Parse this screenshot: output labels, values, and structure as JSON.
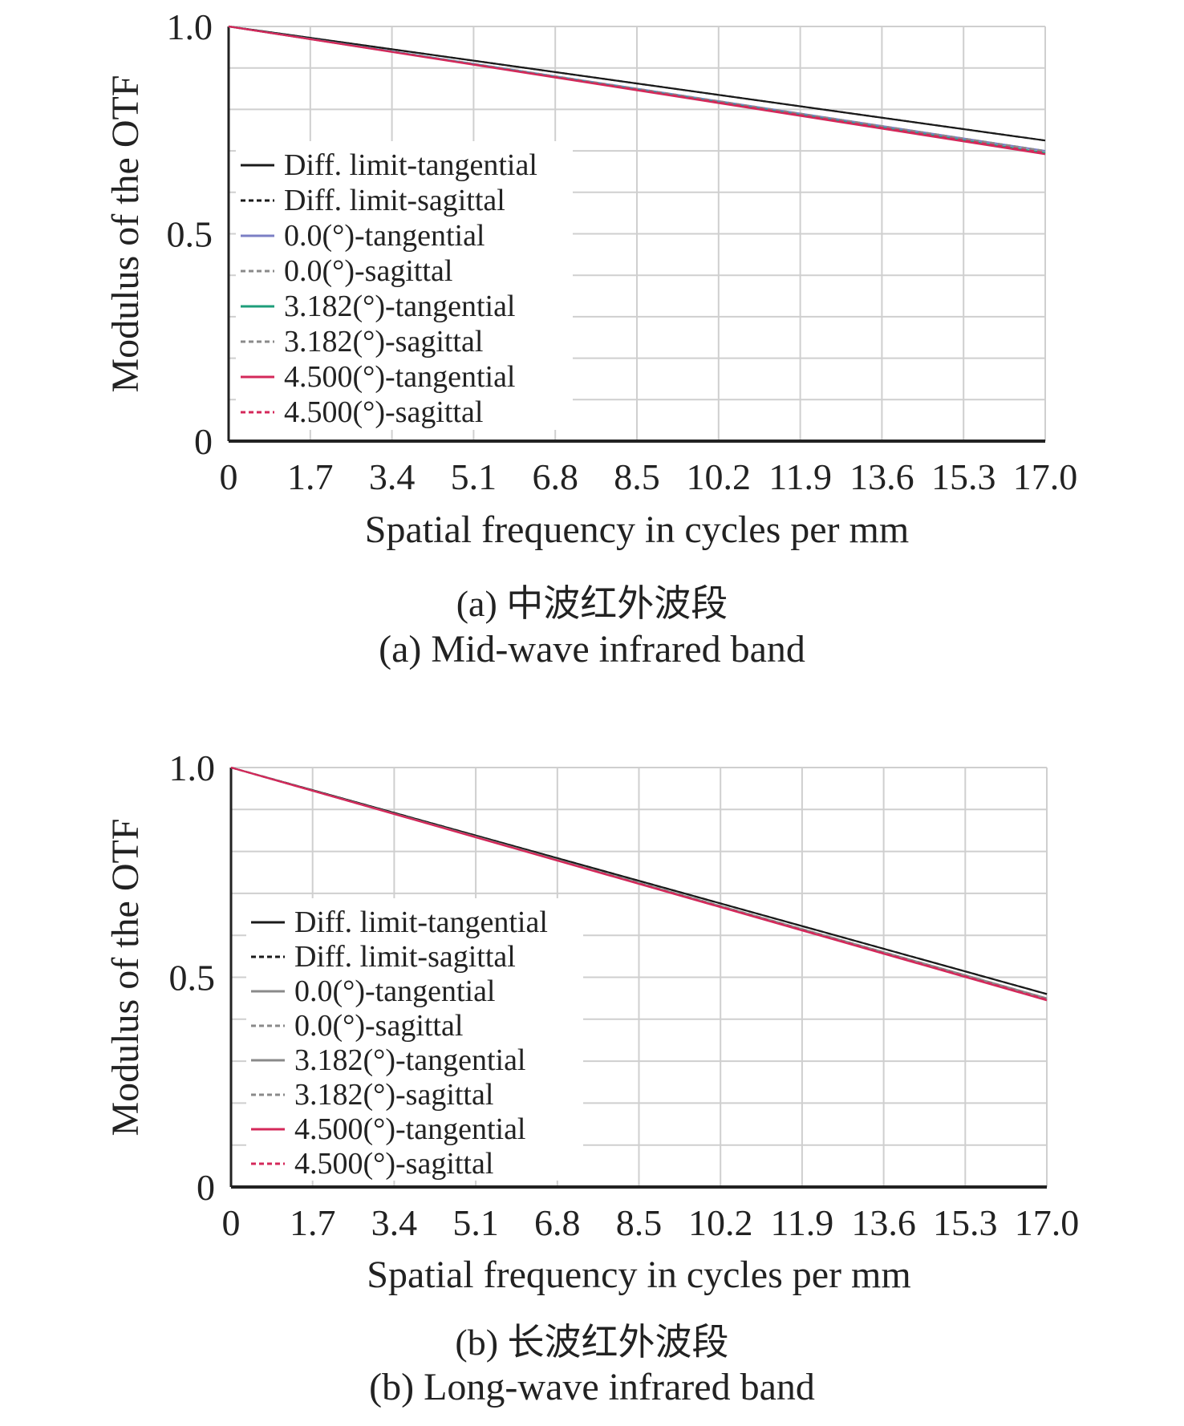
{
  "colors": {
    "diff_limit": "#1a1a1a",
    "field_0_tan": "#7b7fc4",
    "field_3182_tan": "#1e9e7a",
    "field_4500": "#d4285a",
    "grid": "#cfcfcf",
    "gray_trace": "#8a8a8a"
  },
  "chart_data": [
    {
      "type": "line",
      "caption_cn": "(a) 中波红外波段",
      "caption_en": "(a) Mid-wave infrared band",
      "xlabel": "Spatial frequency in cycles per mm",
      "ylabel": "Modulus of the OTF",
      "xlim": [
        0,
        17.0
      ],
      "ylim": [
        0,
        1.0
      ],
      "x_ticks": [
        "0",
        "1.7",
        "3.4",
        "5.1",
        "6.8",
        "8.5",
        "10.2",
        "11.9",
        "13.6",
        "15.3",
        "17.0"
      ],
      "y_ticks": [
        "0",
        "0.5",
        "1.0"
      ],
      "grid": true,
      "legend_position": "center-left",
      "x": [
        0,
        17.0
      ],
      "series": [
        {
          "name": "Diff. limit-tangential",
          "values": [
            1.0,
            0.725
          ],
          "color_key": "diff_limit",
          "dash": false
        },
        {
          "name": "Diff. limit-sagittal",
          "values": [
            1.0,
            0.725
          ],
          "color_key": "diff_limit",
          "dash": true
        },
        {
          "name": "0.0(°)-tangential",
          "values": [
            1.0,
            0.7
          ],
          "color_key": "field_0_tan",
          "dash": false
        },
        {
          "name": "0.0(°)-sagittal",
          "values": [
            1.0,
            0.7
          ],
          "color_key": "gray_trace",
          "dash": true
        },
        {
          "name": "3.182(°)-tangential",
          "values": [
            1.0,
            0.695
          ],
          "color_key": "field_3182_tan",
          "dash": false
        },
        {
          "name": "3.182(°)-sagittal",
          "values": [
            1.0,
            0.697
          ],
          "color_key": "gray_trace",
          "dash": true
        },
        {
          "name": "4.500(°)-tangential",
          "values": [
            1.0,
            0.692
          ],
          "color_key": "field_4500",
          "dash": false
        },
        {
          "name": "4.500(°)-sagittal",
          "values": [
            1.0,
            0.695
          ],
          "color_key": "field_4500",
          "dash": true
        }
      ]
    },
    {
      "type": "line",
      "caption_cn": "(b) 长波红外波段",
      "caption_en": "(b) Long-wave infrared band",
      "xlabel": "Spatial frequency in cycles per mm",
      "ylabel": "Modulus of the OTF",
      "xlim": [
        0,
        17.0
      ],
      "ylim": [
        0,
        1.0
      ],
      "x_ticks": [
        "0",
        "1.7",
        "3.4",
        "5.1",
        "6.8",
        "8.5",
        "10.2",
        "11.9",
        "13.6",
        "15.3",
        "17.0"
      ],
      "y_ticks": [
        "0",
        "0.5",
        "1.0"
      ],
      "grid": true,
      "legend_position": "center-left",
      "x": [
        0,
        17.0
      ],
      "series": [
        {
          "name": "Diff. limit-tangential",
          "values": [
            1.0,
            0.46
          ],
          "color_key": "diff_limit",
          "dash": false
        },
        {
          "name": "Diff. limit-sagittal",
          "values": [
            1.0,
            0.46
          ],
          "color_key": "diff_limit",
          "dash": true
        },
        {
          "name": "0.0(°)-tangential",
          "values": [
            1.0,
            0.45
          ],
          "color_key": "gray_trace",
          "dash": false
        },
        {
          "name": "0.0(°)-sagittal",
          "values": [
            1.0,
            0.45
          ],
          "color_key": "gray_trace",
          "dash": true
        },
        {
          "name": "3.182(°)-tangential",
          "values": [
            1.0,
            0.447
          ],
          "color_key": "gray_trace",
          "dash": false
        },
        {
          "name": "3.182(°)-sagittal",
          "values": [
            1.0,
            0.449
          ],
          "color_key": "gray_trace",
          "dash": true
        },
        {
          "name": "4.500(°)-tangential",
          "values": [
            1.0,
            0.445
          ],
          "color_key": "field_4500",
          "dash": false
        },
        {
          "name": "4.500(°)-sagittal",
          "values": [
            1.0,
            0.447
          ],
          "color_key": "field_4500",
          "dash": true
        }
      ]
    }
  ]
}
